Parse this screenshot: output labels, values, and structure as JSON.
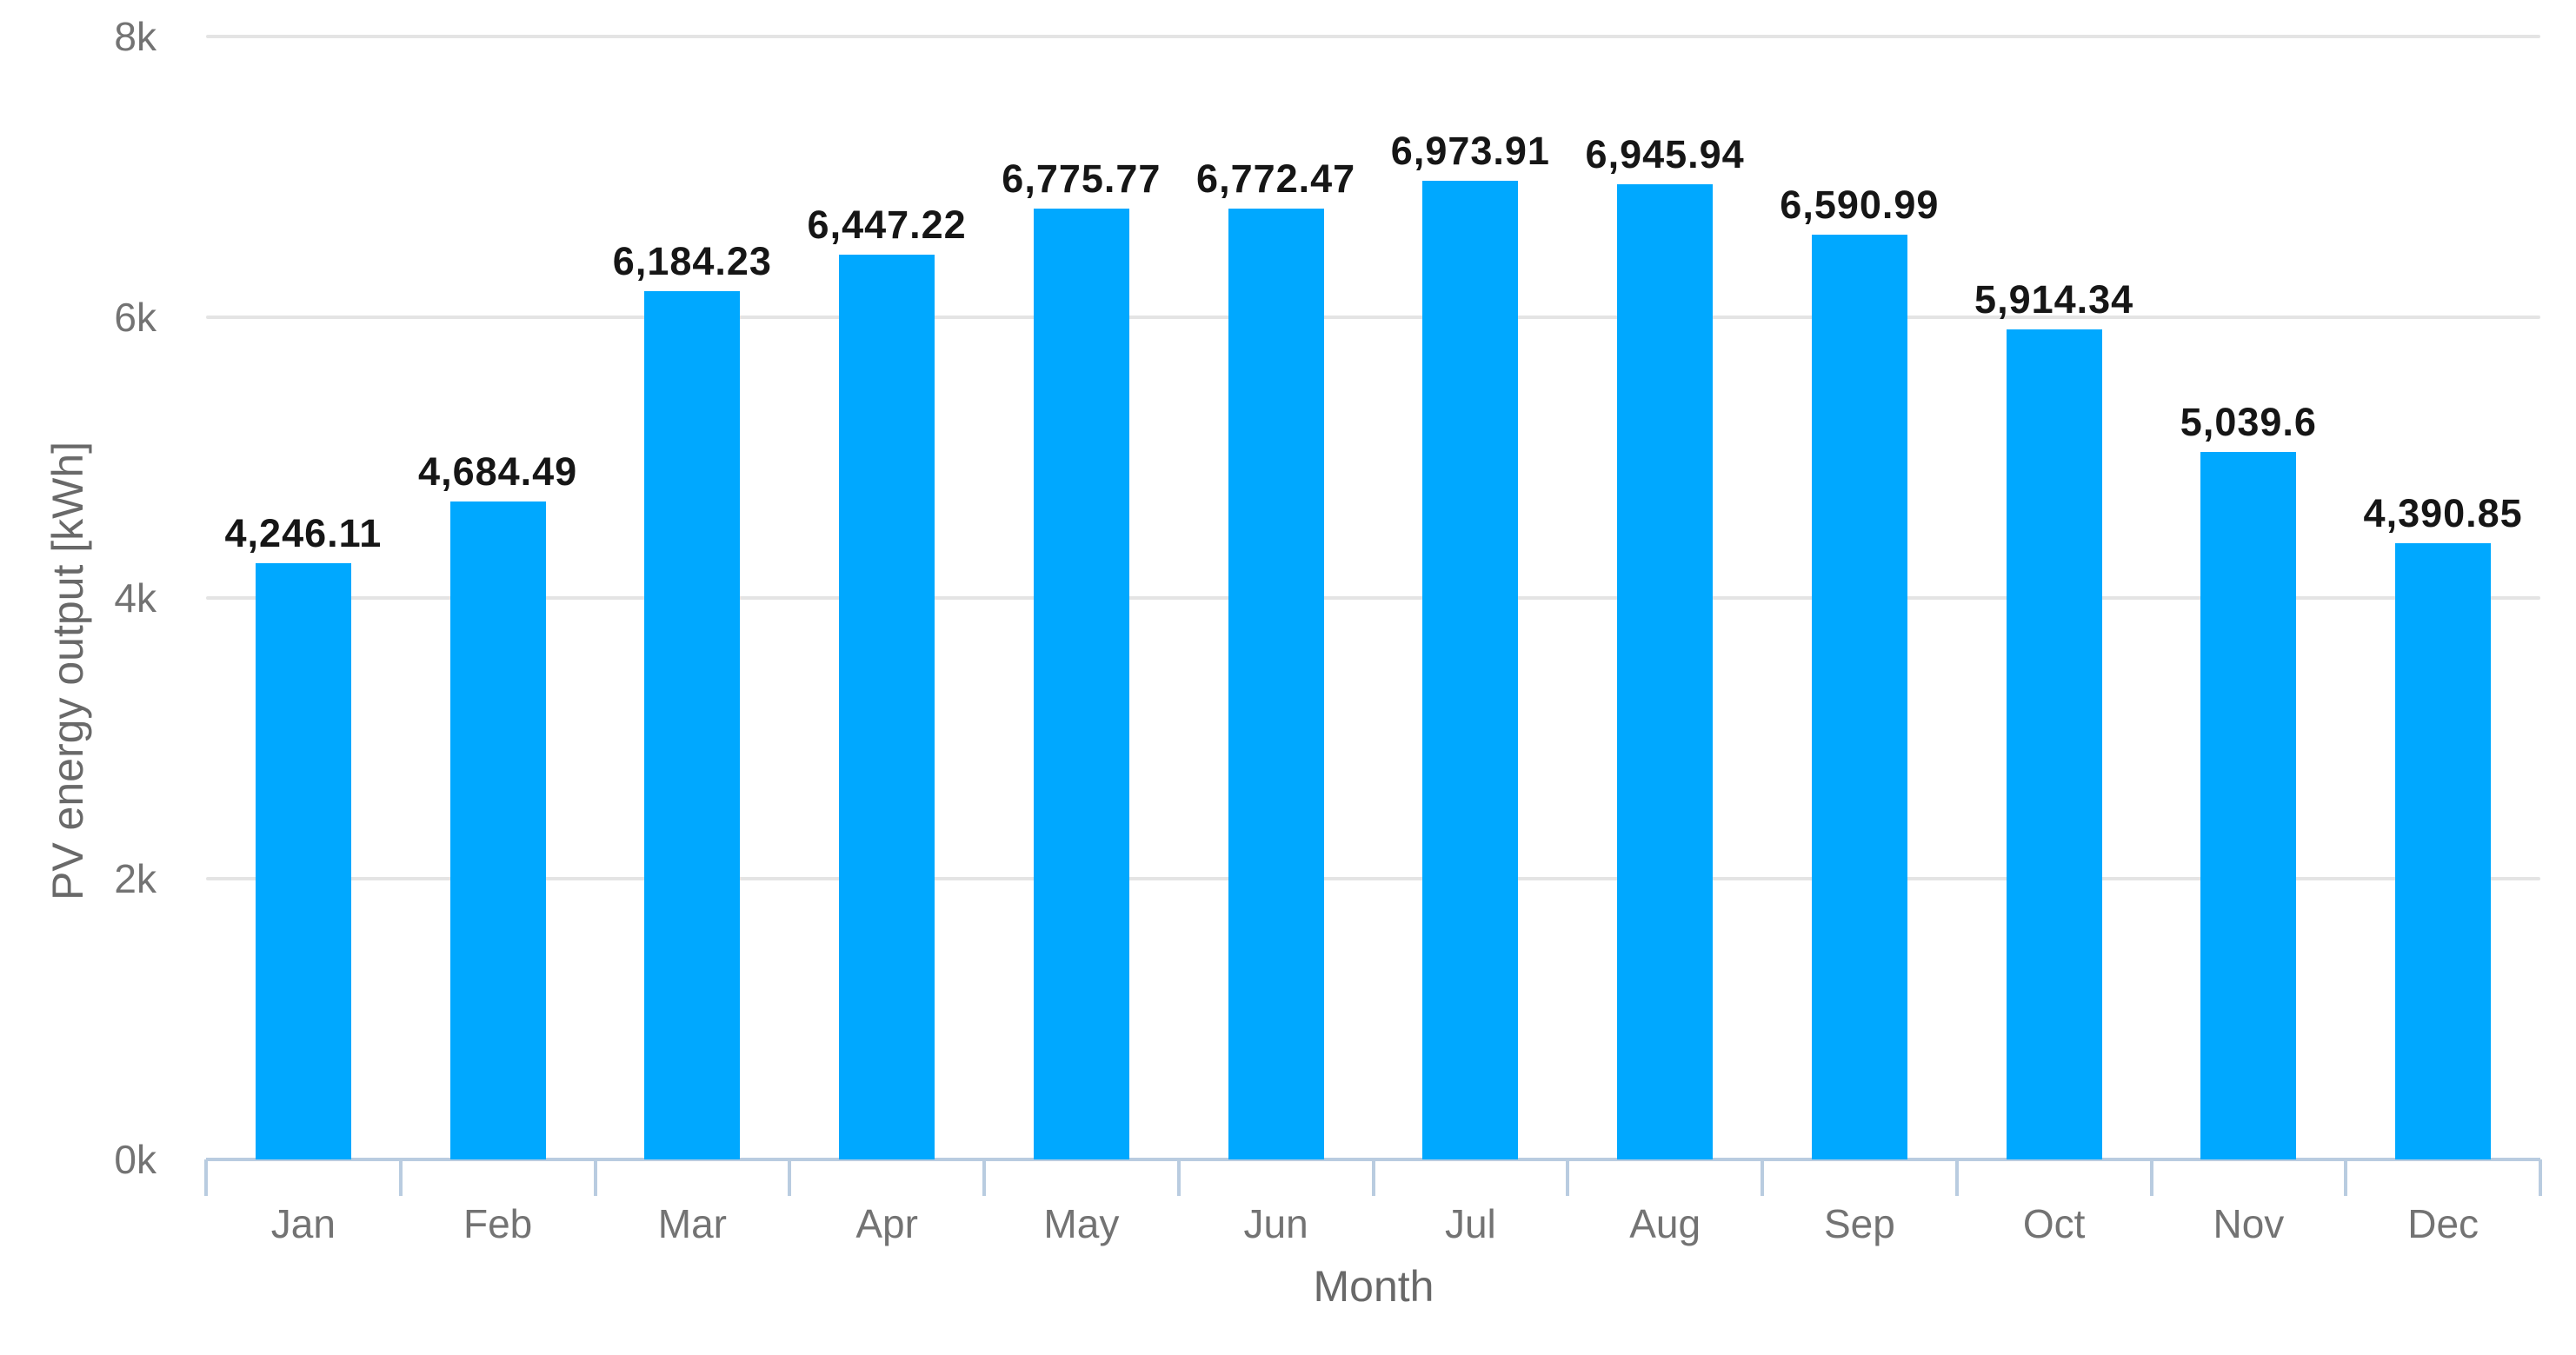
{
  "chart_data": {
    "type": "bar",
    "title": "",
    "xlabel": "Month",
    "ylabel": "PV energy output [kWh]",
    "categories": [
      "Jan",
      "Feb",
      "Mar",
      "Apr",
      "May",
      "Jun",
      "Jul",
      "Aug",
      "Sep",
      "Oct",
      "Nov",
      "Dec"
    ],
    "series": [
      {
        "name": "PV energy output",
        "values": [
          4246.11,
          4684.49,
          6184.23,
          6447.22,
          6775.77,
          6772.47,
          6973.91,
          6945.94,
          6590.99,
          5914.34,
          5039.6,
          4390.85
        ],
        "value_labels": [
          "4,246.11",
          "4,684.49",
          "6,184.23",
          "6,447.22",
          "6,775.77",
          "6,772.47",
          "6,973.91",
          "6,945.94",
          "6,590.99",
          "5,914.34",
          "5,039.6",
          "4,390.85"
        ]
      }
    ],
    "ylim": [
      0,
      8000
    ],
    "yticks": [
      {
        "value": 0,
        "label": "0k"
      },
      {
        "value": 2000,
        "label": "2k"
      },
      {
        "value": 4000,
        "label": "4k"
      },
      {
        "value": 6000,
        "label": "6k"
      },
      {
        "value": 8000,
        "label": "8k"
      }
    ],
    "grid": "horizontal",
    "legend": "none",
    "colors": {
      "bar": "#00A8FF",
      "gridline": "#E4E4E4",
      "axis_line": "#B9CCE0",
      "tick_mark": "#B9CCE0",
      "data_label": "#161616",
      "tick_label": "#737373",
      "axis_title": "#696969",
      "background": "#FFFFFF"
    }
  }
}
